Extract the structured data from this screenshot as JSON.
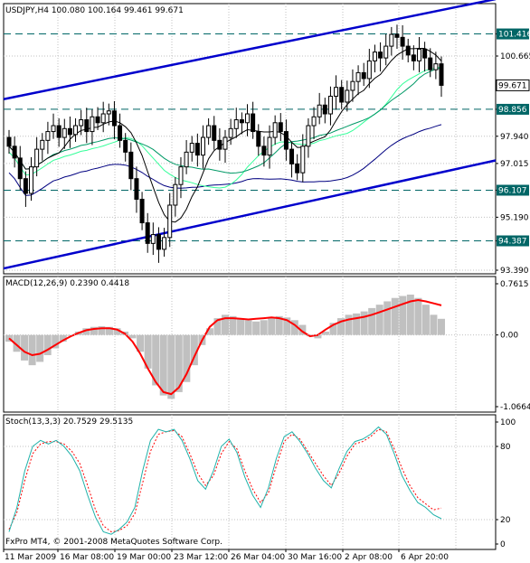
{
  "colors": {
    "background": "#ffffff",
    "frame": "#000000",
    "grid": "#c0c0c0",
    "trendline": "#0000cc",
    "level_line": "#006666",
    "level_tag_bg": "#006666",
    "candle": "#000000",
    "ma_black": "#000000",
    "ma_green": "#009966",
    "ma_lime": "#33ff99",
    "ma_navy": "#000080",
    "macd_hist": "#c0c0c0",
    "macd_signal": "#ff0000",
    "stoch_main": "#20b2aa",
    "stoch_signal": "#ff0000"
  },
  "chart_data": [
    {
      "type": "candlestick",
      "title": "USDJPY,H4  100.080 100.164 99.461 99.671",
      "symbol": "USDJPY",
      "timeframe": "H4",
      "ohlc_last": {
        "open": 100.08,
        "high": 100.164,
        "low": 99.461,
        "close": 99.671
      },
      "ylim": [
        93.39,
        102.2
      ],
      "yticks": [
        "101.416",
        "100.665",
        "99.671",
        "98.856",
        "97.940",
        "97.015",
        "96.107",
        "95.190",
        "94.387",
        "93.390"
      ],
      "current_price": "99.671",
      "levels": [
        "101.416",
        "98.856",
        "96.107",
        "94.387"
      ],
      "level_values": [
        101.416,
        98.856,
        96.107,
        94.387
      ],
      "closes": [
        97.6,
        97.2,
        96.5,
        96.0,
        96.9,
        97.5,
        97.8,
        98.1,
        98.3,
        97.9,
        98.2,
        98.0,
        98.3,
        98.5,
        98.1,
        98.6,
        98.4,
        98.7,
        98.8,
        98.3,
        97.8,
        97.4,
        96.5,
        95.8,
        95.0,
        94.3,
        94.6,
        94.1,
        94.5,
        95.6,
        96.3,
        96.9,
        97.4,
        97.7,
        97.3,
        97.9,
        98.3,
        97.8,
        97.5,
        97.9,
        98.2,
        98.5,
        98.4,
        98.7,
        98.1,
        97.6,
        97.3,
        97.9,
        98.4,
        98.1,
        97.5,
        97.0,
        96.7,
        97.6,
        98.3,
        98.6,
        99.0,
        98.7,
        99.3,
        99.6,
        99.1,
        99.5,
        99.8,
        100.1,
        99.9,
        100.5,
        100.8,
        100.6,
        101.0,
        101.4,
        101.3,
        101.0,
        100.7,
        100.5,
        100.9,
        100.6,
        100.2,
        100.4,
        99.67
      ],
      "series_shown": [
        "Moving average (black)",
        "Moving average (green)",
        "Moving average (lime)",
        "Moving average (navy)"
      ]
    },
    {
      "type": "bar",
      "title": "MACD(12,26,9) 0.2390 0.4418",
      "yticks": [
        "0.7615",
        "0.00",
        "-1.0664"
      ],
      "ylim": [
        -1.0664,
        0.7615
      ],
      "histogram": [
        -0.1,
        -0.25,
        -0.38,
        -0.45,
        -0.4,
        -0.3,
        -0.2,
        -0.1,
        0.0,
        0.05,
        0.1,
        0.12,
        0.13,
        0.12,
        0.1,
        0.05,
        -0.05,
        -0.25,
        -0.5,
        -0.75,
        -0.9,
        -0.95,
        -0.85,
        -0.7,
        -0.45,
        -0.15,
        0.1,
        0.25,
        0.3,
        0.28,
        0.25,
        0.22,
        0.2,
        0.22,
        0.25,
        0.28,
        0.26,
        0.22,
        0.15,
        -0.02,
        -0.05,
        0.05,
        0.18,
        0.25,
        0.3,
        0.32,
        0.35,
        0.4,
        0.45,
        0.5,
        0.55,
        0.58,
        0.6,
        0.55,
        0.45,
        0.3,
        0.24
      ],
      "signal": [
        -0.05,
        -0.15,
        -0.25,
        -0.3,
        -0.28,
        -0.22,
        -0.15,
        -0.08,
        -0.02,
        0.03,
        0.07,
        0.09,
        0.1,
        0.1,
        0.08,
        0.02,
        -0.1,
        -0.28,
        -0.5,
        -0.7,
        -0.85,
        -0.88,
        -0.78,
        -0.58,
        -0.32,
        -0.08,
        0.12,
        0.22,
        0.25,
        0.25,
        0.24,
        0.23,
        0.24,
        0.25,
        0.26,
        0.25,
        0.22,
        0.15,
        0.05,
        -0.02,
        0.0,
        0.08,
        0.15,
        0.2,
        0.23,
        0.25,
        0.27,
        0.3,
        0.34,
        0.38,
        0.42,
        0.46,
        0.5,
        0.52,
        0.5,
        0.47,
        0.44
      ]
    },
    {
      "type": "line",
      "title": "Stoch(13,3,3) 20.7529 29.5135",
      "yticks": [
        "100",
        "80",
        "20",
        "0"
      ],
      "ylim": [
        0,
        100
      ],
      "series": [
        {
          "name": "Main",
          "values": [
            10,
            30,
            60,
            80,
            85,
            82,
            85,
            80,
            72,
            60,
            40,
            22,
            10,
            8,
            12,
            18,
            30,
            60,
            85,
            94,
            92,
            94,
            85,
            70,
            52,
            45,
            60,
            80,
            86,
            75,
            55,
            40,
            30,
            46,
            70,
            88,
            92,
            84,
            74,
            62,
            52,
            46,
            62,
            76,
            84,
            86,
            90,
            96,
            90,
            74,
            56,
            44,
            34,
            30,
            24,
            20.75
          ]
        },
        {
          "name": "Signal",
          "values": [
            12,
            26,
            52,
            74,
            82,
            84,
            84,
            82,
            76,
            66,
            48,
            28,
            15,
            10,
            11,
            15,
            25,
            50,
            76,
            90,
            92,
            93,
            88,
            74,
            58,
            48,
            56,
            74,
            84,
            78,
            60,
            45,
            34,
            42,
            64,
            84,
            90,
            86,
            76,
            66,
            56,
            48,
            58,
            72,
            82,
            84,
            88,
            94,
            92,
            78,
            62,
            48,
            38,
            33,
            28,
            29.51
          ]
        }
      ]
    }
  ],
  "x_axis": {
    "labels": [
      "11 Mar 2009",
      "16 Mar 08:00",
      "19 Mar 00:00",
      "23 Mar 12:00",
      "26 Mar 04:00",
      "30 Mar 16:00",
      "2 Apr 08:00",
      "6 Apr 20:00"
    ]
  },
  "footer": {
    "copyright": "FxPro MT4, © 2001-2008 MetaQuotes Software Corp."
  }
}
